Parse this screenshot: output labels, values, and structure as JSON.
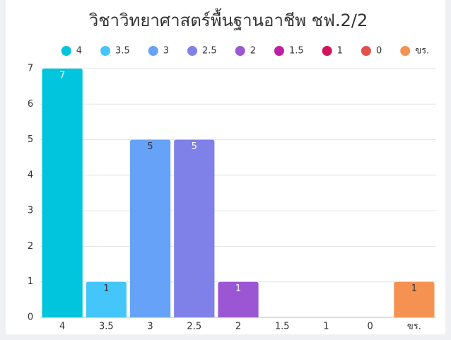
{
  "chart_data": {
    "type": "bar",
    "title": "วิชาวิทยาศาสตร์พื้นฐานอาชีพ ชฟ.2/2",
    "categories": [
      "4",
      "3.5",
      "3",
      "2.5",
      "2",
      "1.5",
      "1",
      "0",
      "ขร."
    ],
    "values": [
      7,
      1,
      5,
      5,
      1,
      0,
      0,
      0,
      1
    ],
    "colors": [
      "#00c5dc",
      "#45c6fa",
      "#66a3f8",
      "#7f80e8",
      "#9b57d3",
      "#c21da6",
      "#d4135e",
      "#e0524a",
      "#f59251"
    ],
    "ylim": [
      0,
      7
    ],
    "yticks": [
      0,
      1,
      2,
      3,
      4,
      5,
      6,
      7
    ],
    "grid": true,
    "legend": "top"
  }
}
